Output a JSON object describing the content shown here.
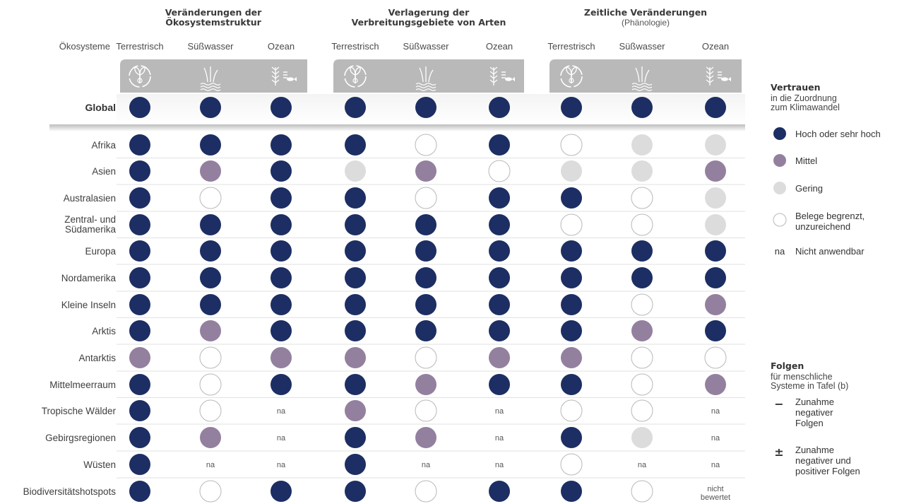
{
  "chart_data": {
    "type": "table",
    "row_header_label": "Ökosysteme",
    "groups": [
      {
        "title_lines": [
          "Veränderungen der",
          "Ökosystemstruktur"
        ],
        "subtitle": ""
      },
      {
        "title_lines": [
          "Verlagerung der",
          "Verbreitungsgebiete von Arten"
        ],
        "subtitle": ""
      },
      {
        "title_lines": [
          "Zeitliche Veränderungen"
        ],
        "subtitle": "(Phänologie)"
      }
    ],
    "subheaders": [
      "Terrestrisch",
      "Süßwasser",
      "Ozean",
      "Terrestrisch",
      "Süßwasser",
      "Ozean",
      "Terrestrisch",
      "Süßwasser",
      "Ozean"
    ],
    "icons": [
      "terrestrial-icon",
      "freshwater-icon",
      "ocean-icon"
    ],
    "rows": [
      {
        "label": [
          "Global"
        ],
        "values": [
          "high",
          "high",
          "high",
          "high",
          "high",
          "high",
          "high",
          "high",
          "high"
        ]
      },
      {
        "label": [
          "Afrika"
        ],
        "values": [
          "high",
          "high",
          "high",
          "high",
          "limited",
          "high",
          "limited",
          "low",
          "low"
        ]
      },
      {
        "label": [
          "Asien"
        ],
        "values": [
          "high",
          "medium",
          "high",
          "low",
          "medium",
          "limited",
          "low",
          "low",
          "medium"
        ]
      },
      {
        "label": [
          "Australasien"
        ],
        "values": [
          "high",
          "limited",
          "high",
          "high",
          "limited",
          "high",
          "high",
          "limited",
          "low"
        ]
      },
      {
        "label": [
          "Zentral- und",
          "Südamerika"
        ],
        "values": [
          "high",
          "high",
          "high",
          "high",
          "high",
          "high",
          "limited",
          "limited",
          "low"
        ]
      },
      {
        "label": [
          "Europa"
        ],
        "values": [
          "high",
          "high",
          "high",
          "high",
          "high",
          "high",
          "high",
          "high",
          "high"
        ]
      },
      {
        "label": [
          "Nordamerika"
        ],
        "values": [
          "high",
          "high",
          "high",
          "high",
          "high",
          "high",
          "high",
          "high",
          "high"
        ]
      },
      {
        "label": [
          "Kleine Inseln"
        ],
        "values": [
          "high",
          "high",
          "high",
          "high",
          "high",
          "high",
          "high",
          "limited",
          "medium"
        ]
      },
      {
        "label": [
          "Arktis"
        ],
        "values": [
          "high",
          "medium",
          "high",
          "high",
          "high",
          "high",
          "high",
          "medium",
          "high"
        ]
      },
      {
        "label": [
          "Antarktis"
        ],
        "values": [
          "medium",
          "limited",
          "medium",
          "medium",
          "limited",
          "medium",
          "medium",
          "limited",
          "limited"
        ]
      },
      {
        "label": [
          "Mittelmeerraum"
        ],
        "values": [
          "high",
          "limited",
          "high",
          "high",
          "medium",
          "high",
          "high",
          "limited",
          "medium"
        ]
      },
      {
        "label": [
          "Tropische Wälder"
        ],
        "values": [
          "high",
          "limited",
          "na",
          "medium",
          "limited",
          "na",
          "limited",
          "limited",
          "na"
        ]
      },
      {
        "label": [
          "Gebirgsregionen"
        ],
        "values": [
          "high",
          "medium",
          "na",
          "high",
          "medium",
          "na",
          "high",
          "low",
          "na"
        ]
      },
      {
        "label": [
          "Wüsten"
        ],
        "values": [
          "high",
          "na",
          "na",
          "high",
          "na",
          "na",
          "limited",
          "na",
          "na"
        ]
      },
      {
        "label": [
          "Biodiversitätshotspots"
        ],
        "values": [
          "high",
          "limited",
          "high",
          "high",
          "limited",
          "high",
          "high",
          "limited",
          "not_assessed"
        ]
      }
    ],
    "na_text": "na",
    "not_assessed_lines": [
      "nicht",
      "bewertet"
    ],
    "colors": {
      "high": "#1c2e63",
      "medium": "#93809f",
      "low": "#dcdcdc",
      "limited": "#ffffff",
      "limited_stroke": "#b8b8b8",
      "icon_band": "#b9b9b9",
      "icon_fg": "#ffffff",
      "row_line": "#e2e2e2"
    },
    "legend": {
      "confidence_title": "Vertrauen",
      "confidence_subtitle_lines": [
        "in die Zuordnung",
        "zum Klimawandel"
      ],
      "confidence_items": [
        {
          "level": "high",
          "label_lines": [
            "Hoch oder sehr hoch"
          ]
        },
        {
          "level": "medium",
          "label_lines": [
            "Mittel"
          ]
        },
        {
          "level": "low",
          "label_lines": [
            "Gering"
          ]
        },
        {
          "level": "limited",
          "label_lines": [
            "Belege begrenzt,",
            "unzureichend"
          ]
        },
        {
          "level": "na",
          "symbol": "na",
          "label_lines": [
            "Nicht anwendbar"
          ]
        }
      ],
      "impacts_title": "Folgen",
      "impacts_subtitle_lines": [
        "für menschliche",
        "Systeme in Tafel (b)"
      ],
      "impacts_items": [
        {
          "symbol": "−",
          "label_lines": [
            "Zunahme",
            "negativer",
            "Folgen"
          ]
        },
        {
          "symbol": "±",
          "label_lines": [
            "Zunahme",
            "negativer und",
            "positiver Folgen"
          ]
        }
      ]
    }
  }
}
